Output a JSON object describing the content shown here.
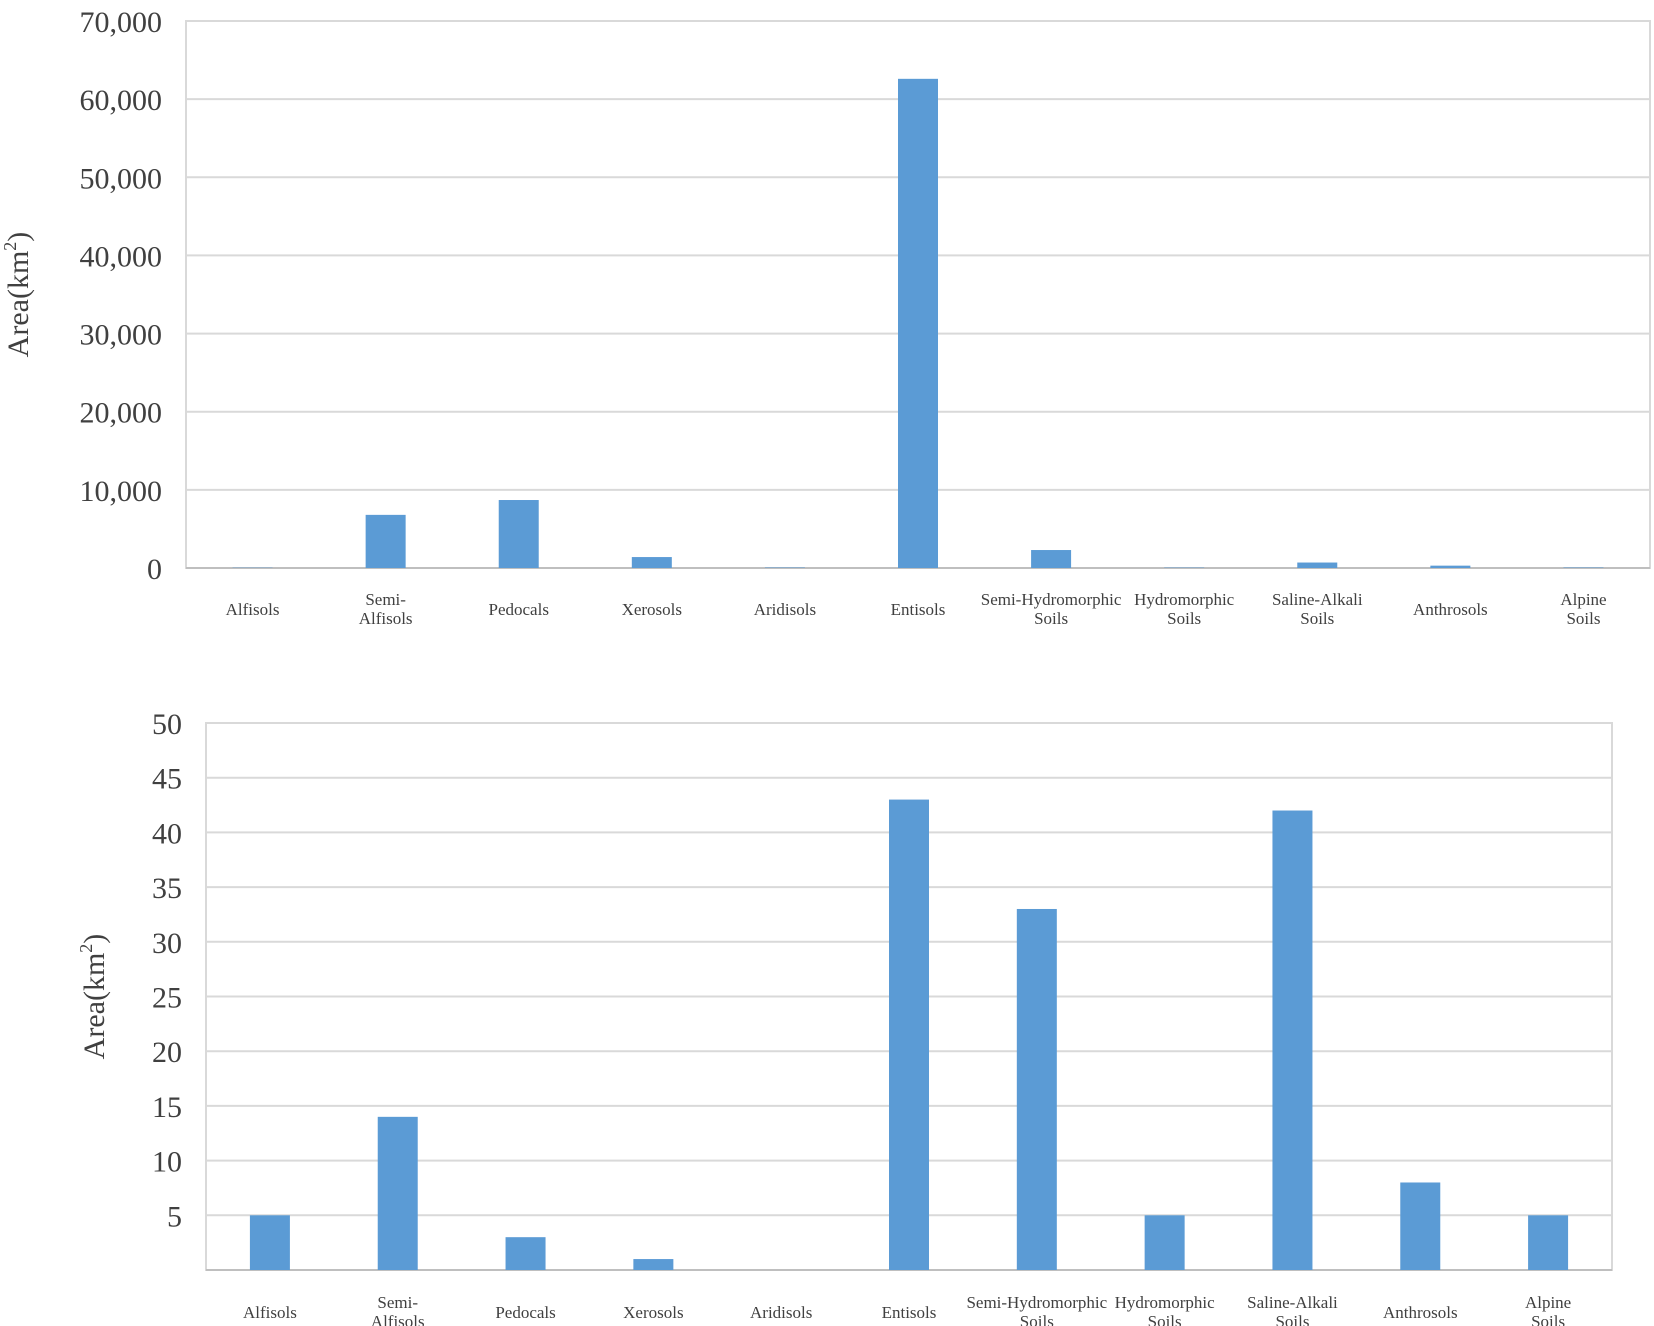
{
  "chart_data": [
    {
      "type": "bar",
      "title": "",
      "xlabel": "",
      "ylabel": "Area(km",
      "ylabel_superscript": "2",
      "ylabel_suffix": ")",
      "ylim": [
        0,
        70000
      ],
      "yticks": [
        "0",
        "10,000",
        "20,000",
        "30,000",
        "40,000",
        "50,000",
        "60,000",
        "70,000"
      ],
      "grid": true,
      "bar_color": "#5B9BD5",
      "categories": [
        [
          "Alfisols"
        ],
        [
          "Semi-",
          "Alfisols"
        ],
        [
          "Pedocals"
        ],
        [
          "Xerosols"
        ],
        [
          "Aridisols"
        ],
        [
          "Entisols"
        ],
        [
          "Semi-Hydromorphic",
          "Soils"
        ],
        [
          "Hydromorphic",
          "Soils"
        ],
        [
          "Saline-Alkali",
          "Soils"
        ],
        [
          "Anthrosols"
        ],
        [
          "Alpine",
          "Soils"
        ]
      ],
      "values": [
        40,
        6800,
        8700,
        1400,
        60,
        62600,
        2300,
        50,
        700,
        300,
        60
      ]
    },
    {
      "type": "bar",
      "title": "",
      "xlabel": "",
      "ylabel": "Area(km",
      "ylabel_superscript": "2",
      "ylabel_suffix": ")",
      "ylim": [
        0,
        50
      ],
      "yticks": [
        "",
        "5",
        "10",
        "15",
        "20",
        "25",
        "30",
        "35",
        "40",
        "45",
        "50"
      ],
      "grid": true,
      "bar_color": "#5B9BD5",
      "categories": [
        [
          "Alfisols"
        ],
        [
          "Semi-",
          "Alfisols"
        ],
        [
          "Pedocals"
        ],
        [
          "Xerosols"
        ],
        [
          "Aridisols"
        ],
        [
          "Entisols"
        ],
        [
          "Semi-Hydromorphic",
          "Soils"
        ],
        [
          "Hydromorphic",
          "Soils"
        ],
        [
          "Saline-Alkali",
          "Soils"
        ],
        [
          "Anthrosols"
        ],
        [
          "Alpine",
          "Soils"
        ]
      ],
      "values": [
        5,
        14,
        3,
        1,
        0,
        43,
        33,
        5,
        42,
        8,
        5
      ]
    }
  ]
}
